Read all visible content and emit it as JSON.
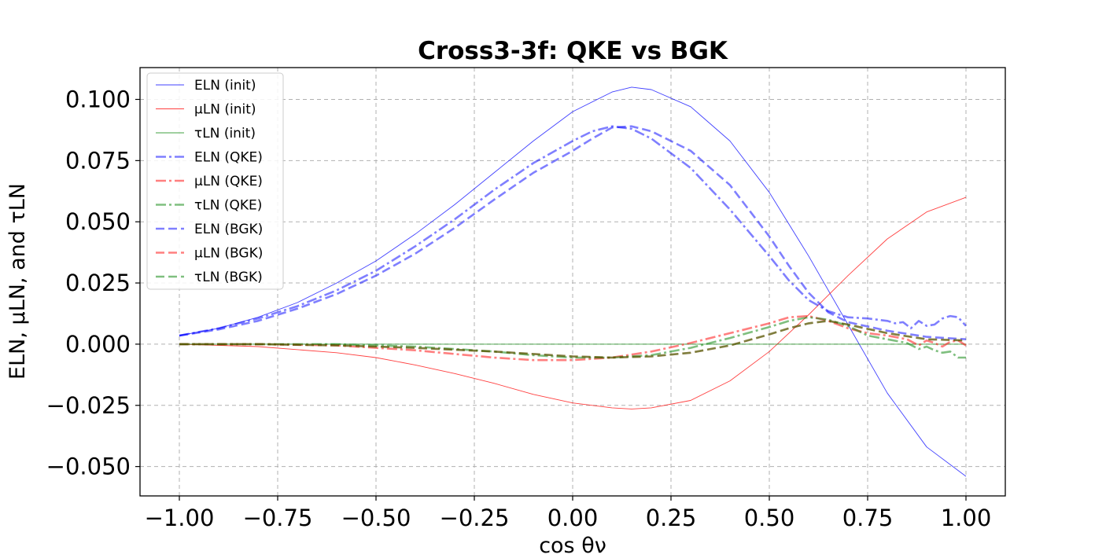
{
  "chart_data": {
    "type": "line",
    "title": "Cross3-3f: QKE vs BGK",
    "xlabel": "cos θν",
    "ylabel": "ELN, μLN, and τLN",
    "xlim": [
      -1.1,
      1.1
    ],
    "ylim": [
      -0.062,
      0.113
    ],
    "xticks": [
      -1.0,
      -0.75,
      -0.5,
      -0.25,
      0.0,
      0.25,
      0.5,
      0.75,
      1.0
    ],
    "xtick_labels": [
      "−1.00",
      "−0.75",
      "−0.50",
      "−0.25",
      "0.00",
      "0.25",
      "0.50",
      "0.75",
      "1.00"
    ],
    "yticks": [
      -0.05,
      -0.025,
      0.0,
      0.025,
      0.05,
      0.075,
      0.1
    ],
    "ytick_labels": [
      "−0.050",
      "−0.025",
      "0.000",
      "0.025",
      "0.050",
      "0.075",
      "0.100"
    ],
    "grid": true,
    "legend_position": "upper-left",
    "series": [
      {
        "name": "ELN (init)",
        "color": "#0000ff",
        "style": "solid",
        "x": [
          -1.0,
          -0.9,
          -0.8,
          -0.7,
          -0.6,
          -0.5,
          -0.4,
          -0.3,
          -0.2,
          -0.1,
          0.0,
          0.1,
          0.15,
          0.2,
          0.3,
          0.4,
          0.5,
          0.6,
          0.7,
          0.8,
          0.9,
          1.0
        ],
        "y": [
          0.0035,
          0.0065,
          0.011,
          0.017,
          0.025,
          0.034,
          0.045,
          0.057,
          0.07,
          0.083,
          0.095,
          0.103,
          0.105,
          0.104,
          0.097,
          0.083,
          0.062,
          0.036,
          0.008,
          -0.02,
          -0.042,
          -0.054
        ]
      },
      {
        "name": "μLN (init)",
        "color": "#ff0000",
        "style": "solid",
        "x": [
          -1.0,
          -0.8,
          -0.6,
          -0.5,
          -0.4,
          -0.3,
          -0.2,
          -0.1,
          0.0,
          0.1,
          0.15,
          0.2,
          0.3,
          0.4,
          0.5,
          0.6,
          0.7,
          0.8,
          0.9,
          1.0
        ],
        "y": [
          0.0,
          -0.001,
          -0.0035,
          -0.0055,
          -0.0085,
          -0.012,
          -0.016,
          -0.0205,
          -0.024,
          -0.026,
          -0.0265,
          -0.026,
          -0.023,
          -0.015,
          -0.003,
          0.012,
          0.028,
          0.043,
          0.054,
          0.06
        ]
      },
      {
        "name": "τLN (init)",
        "color": "#008000",
        "style": "solid",
        "x": [
          -1.0,
          1.0
        ],
        "y": [
          0.0,
          0.0
        ]
      },
      {
        "name": "ELN (QKE)",
        "color": "#0000ff",
        "style": "dashdot",
        "x": [
          -1.0,
          -0.9,
          -0.8,
          -0.7,
          -0.6,
          -0.5,
          -0.4,
          -0.3,
          -0.2,
          -0.1,
          0.0,
          0.05,
          0.1,
          0.15,
          0.2,
          0.3,
          0.4,
          0.5,
          0.55,
          0.6,
          0.65,
          0.7,
          0.75,
          0.8,
          0.82,
          0.84,
          0.86,
          0.88,
          0.9,
          0.92,
          0.94,
          0.96,
          0.98,
          1.0
        ],
        "y": [
          0.0035,
          0.0065,
          0.0105,
          0.0155,
          0.022,
          0.03,
          0.04,
          0.051,
          0.063,
          0.074,
          0.083,
          0.087,
          0.089,
          0.088,
          0.084,
          0.072,
          0.055,
          0.036,
          0.026,
          0.018,
          0.0135,
          0.011,
          0.0105,
          0.0095,
          0.0085,
          0.009,
          0.0065,
          0.0095,
          0.0075,
          0.008,
          0.0105,
          0.0115,
          0.011,
          0.0075
        ]
      },
      {
        "name": "μLN (QKE)",
        "color": "#ff0000",
        "style": "dashdot",
        "x": [
          -1.0,
          -0.8,
          -0.6,
          -0.5,
          -0.4,
          -0.3,
          -0.2,
          -0.1,
          0.0,
          0.1,
          0.2,
          0.3,
          0.4,
          0.5,
          0.55,
          0.6,
          0.65,
          0.7,
          0.75,
          0.8,
          0.85,
          0.88,
          0.9,
          0.92,
          0.94,
          0.96,
          0.98,
          1.0
        ],
        "y": [
          0.0,
          0.0,
          -0.0005,
          -0.0015,
          -0.0025,
          -0.004,
          -0.0055,
          -0.0065,
          -0.0065,
          -0.0055,
          -0.003,
          0.0005,
          0.0045,
          0.0085,
          0.011,
          0.0115,
          0.0095,
          0.0065,
          0.0045,
          0.0035,
          0.002,
          -0.0005,
          0.0015,
          0.0005,
          -0.001,
          0.001,
          0.0015,
          -0.0005
        ]
      },
      {
        "name": "τLN (QKE)",
        "color": "#008000",
        "style": "dashdot",
        "x": [
          -1.0,
          -0.8,
          -0.6,
          -0.5,
          -0.4,
          -0.3,
          -0.2,
          -0.1,
          0.0,
          0.1,
          0.2,
          0.3,
          0.4,
          0.5,
          0.55,
          0.6,
          0.65,
          0.7,
          0.75,
          0.8,
          0.85,
          0.88,
          0.9,
          0.92,
          0.94,
          0.96,
          0.98,
          1.0
        ],
        "y": [
          0.0,
          0.0,
          0.0,
          -0.0005,
          -0.001,
          -0.002,
          -0.003,
          -0.0045,
          -0.0055,
          -0.0055,
          -0.0045,
          -0.0015,
          0.0025,
          0.007,
          0.0095,
          0.011,
          0.01,
          0.0075,
          0.0035,
          0.002,
          0.0005,
          -0.002,
          -0.001,
          -0.0025,
          -0.0035,
          -0.003,
          -0.0055,
          -0.0055
        ]
      },
      {
        "name": "ELN (BGK)",
        "color": "#0000ff",
        "style": "dashed",
        "x": [
          -1.0,
          -0.9,
          -0.8,
          -0.7,
          -0.6,
          -0.5,
          -0.4,
          -0.3,
          -0.2,
          -0.1,
          0.0,
          0.05,
          0.1,
          0.15,
          0.2,
          0.3,
          0.4,
          0.5,
          0.55,
          0.6,
          0.65,
          0.7,
          0.8,
          0.9,
          1.0
        ],
        "y": [
          0.0035,
          0.006,
          0.0095,
          0.0145,
          0.0205,
          0.028,
          0.037,
          0.0475,
          0.059,
          0.07,
          0.079,
          0.084,
          0.0885,
          0.089,
          0.087,
          0.079,
          0.065,
          0.044,
          0.032,
          0.021,
          0.013,
          0.009,
          0.0055,
          0.003,
          0.002
        ]
      },
      {
        "name": "μLN (BGK)",
        "color": "#ff0000",
        "style": "dashed",
        "x": [
          -1.0,
          -0.8,
          -0.6,
          -0.4,
          -0.2,
          0.0,
          0.1,
          0.2,
          0.3,
          0.4,
          0.5,
          0.55,
          0.6,
          0.65,
          0.7,
          0.8,
          0.9,
          1.0
        ],
        "y": [
          0.0,
          0.0,
          -0.0005,
          -0.0015,
          -0.003,
          -0.005,
          -0.0055,
          -0.005,
          -0.0035,
          -0.0005,
          0.004,
          0.0065,
          0.0085,
          0.0095,
          0.008,
          0.0045,
          0.002,
          0.0015
        ]
      },
      {
        "name": "τLN (BGK)",
        "color": "#008000",
        "style": "dashed",
        "x": [
          -1.0,
          -0.8,
          -0.6,
          -0.4,
          -0.2,
          0.0,
          0.1,
          0.2,
          0.3,
          0.4,
          0.5,
          0.55,
          0.6,
          0.65,
          0.7,
          0.8,
          0.9,
          1.0
        ],
        "y": [
          0.0,
          0.0,
          -0.0005,
          -0.0015,
          -0.003,
          -0.005,
          -0.0055,
          -0.005,
          -0.0035,
          -0.0005,
          0.004,
          0.0065,
          0.0085,
          0.0095,
          0.008,
          0.0045,
          0.002,
          0.0015
        ]
      }
    ]
  }
}
